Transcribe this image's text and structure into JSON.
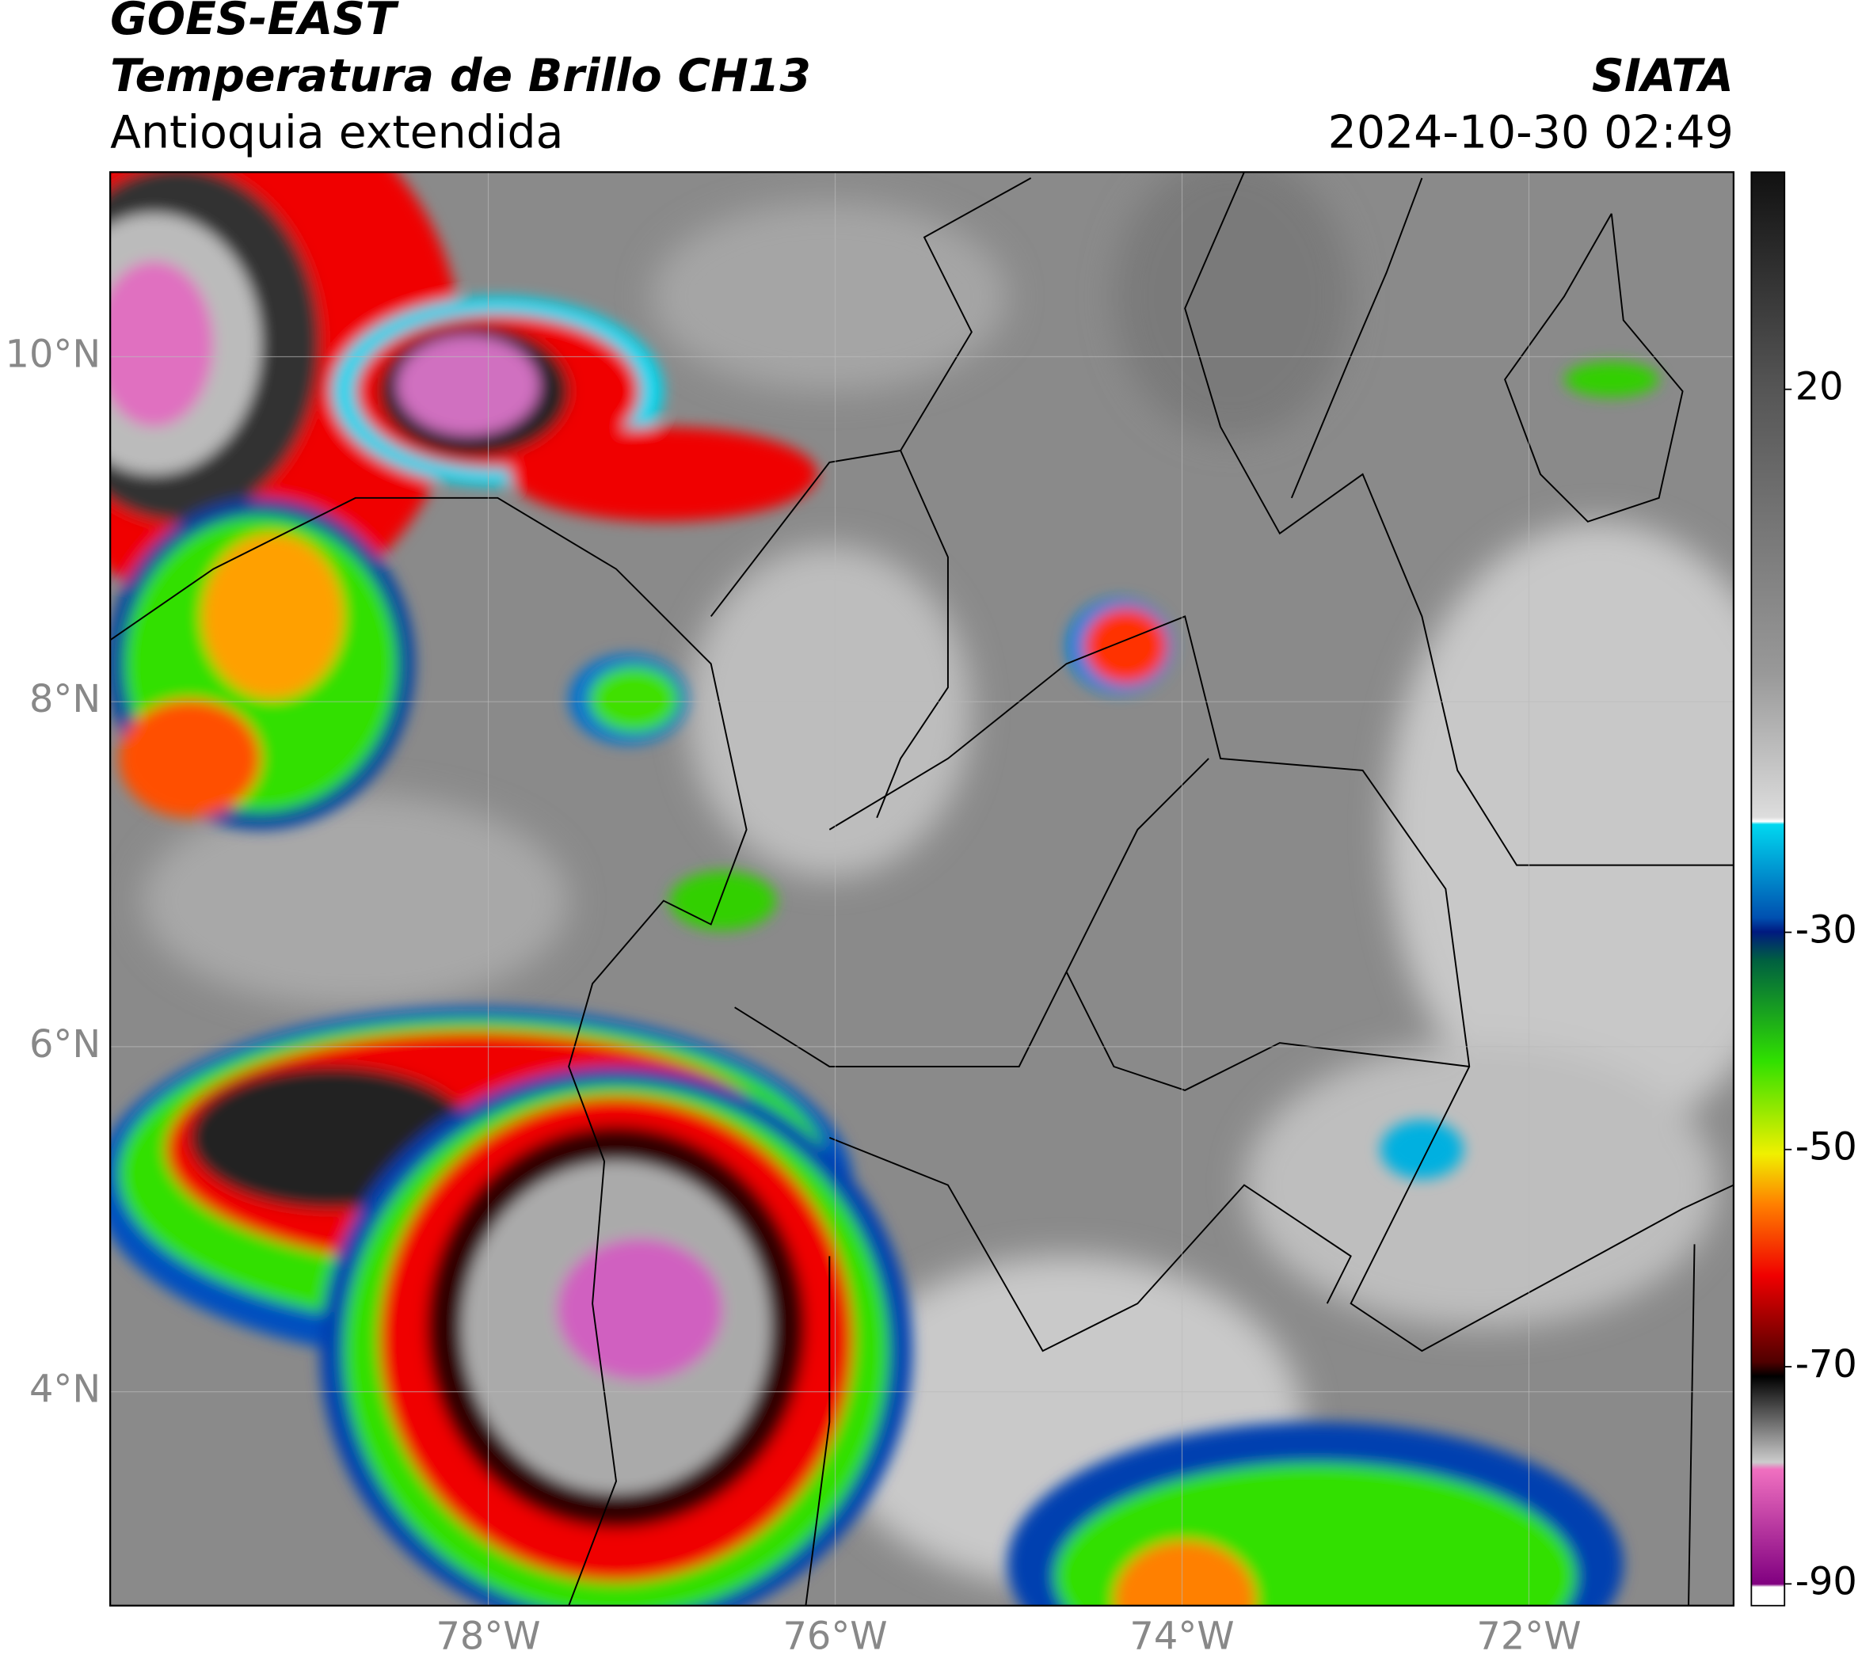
{
  "header": {
    "title": "GOES-EAST",
    "subtitle": "Temperatura de Brillo CH13",
    "region": "Antioquia extendida",
    "agency": "SIATA",
    "timestamp": "2024-10-30 02:49"
  },
  "map": {
    "xlim": [
      -80.18,
      -70.82
    ],
    "ylim": [
      2.76,
      11.07
    ],
    "xticks": [
      {
        "value": -78,
        "label": "78°W"
      },
      {
        "value": -76,
        "label": "76°W"
      },
      {
        "value": -74,
        "label": "74°W"
      },
      {
        "value": -72,
        "label": "72°W"
      }
    ],
    "yticks": [
      {
        "value": 10,
        "label": "10°N"
      },
      {
        "value": 8,
        "label": "8°N"
      },
      {
        "value": 6,
        "label": "6°N"
      },
      {
        "value": 4,
        "label": "4°N"
      }
    ],
    "grid": true
  },
  "colorbar": {
    "lim": [
      -92,
      40
    ],
    "ticks": [
      20,
      -30,
      -50,
      -70,
      -90
    ]
  }
}
